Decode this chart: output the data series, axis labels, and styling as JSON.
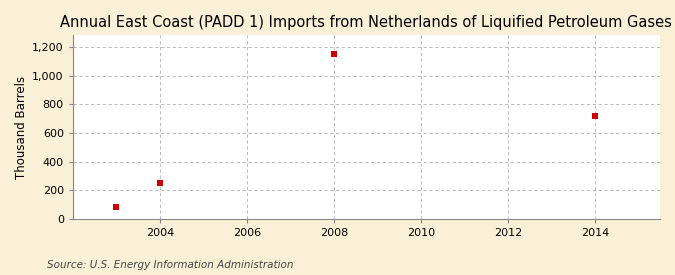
{
  "title": "Annual East Coast (PADD 1) Imports from Netherlands of Liquified Petroleum Gases",
  "ylabel": "Thousand Barrels",
  "source": "Source: U.S. Energy Information Administration",
  "x_data": [
    2003,
    2004,
    2008,
    2014
  ],
  "y_data": [
    85,
    248,
    1148,
    720
  ],
  "xlim": [
    2002.0,
    2015.5
  ],
  "ylim": [
    0,
    1280
  ],
  "yticks": [
    0,
    200,
    400,
    600,
    800,
    1000,
    1200
  ],
  "ytick_labels": [
    "0",
    "200",
    "400",
    "600",
    "800",
    "1,000",
    "1,200"
  ],
  "xticks": [
    2004,
    2006,
    2008,
    2010,
    2012,
    2014
  ],
  "outer_bg": "#FAF0D7",
  "plot_bg": "#FFFFFF",
  "marker_color": "#CC0000",
  "marker_size": 4,
  "grid_color": "#AAAAAA",
  "title_fontsize": 10.5,
  "label_fontsize": 8.5,
  "tick_fontsize": 8,
  "source_fontsize": 7.5,
  "spine_color": "#888888"
}
